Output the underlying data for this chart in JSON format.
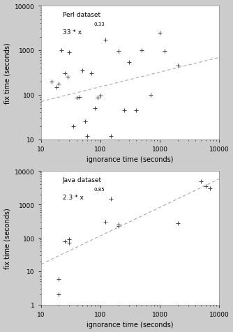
{
  "perl": {
    "label": "Perl dataset",
    "formula_base": "33 * x",
    "formula_exp": "0.33",
    "coeff": 33,
    "exp": 0.33,
    "points_x": [
      15,
      18,
      20,
      22,
      25,
      28,
      30,
      35,
      40,
      45,
      50,
      55,
      60,
      70,
      80,
      90,
      100,
      120,
      150,
      200,
      250,
      300,
      400,
      500,
      700,
      1000,
      1200,
      2000
    ],
    "points_y": [
      200,
      150,
      180,
      1000,
      300,
      250,
      900,
      20,
      85,
      90,
      350,
      25,
      12,
      300,
      50,
      85,
      95,
      1700,
      12,
      950,
      45,
      550,
      45,
      1000,
      100,
      2500,
      950,
      450
    ],
    "xlim": [
      10,
      10000
    ],
    "ylim": [
      10,
      10000
    ],
    "xlabel": "ignorance time (seconds)",
    "ylabel": "fix time (seconds)"
  },
  "java": {
    "label": "Java dataset",
    "formula_base": "2.3 * x",
    "formula_exp": "0.85",
    "coeff": 2.3,
    "exp": 0.85,
    "points_x": [
      20,
      20,
      25,
      30,
      30,
      120,
      150,
      200,
      200,
      200,
      2000,
      5000,
      6000,
      7000
    ],
    "points_y": [
      2,
      6,
      80,
      90,
      70,
      300,
      1500,
      250,
      230,
      250,
      270,
      5000,
      3500,
      3000
    ],
    "xlim": [
      10,
      10000
    ],
    "ylim": [
      1,
      10000
    ],
    "xlabel": "ignorance time (seconds)",
    "ylabel": "fix time (seconds)"
  },
  "line_color": "#aaaaaa",
  "marker": "+",
  "marker_color": "#444444",
  "marker_size": 4,
  "marker_edge_width": 0.7,
  "bg_color": "#ffffff",
  "fig_bg_color": "#cccccc",
  "font_size": 6.5,
  "axis_label_font_size": 7,
  "annotation_font_size": 6.5,
  "line_width": 0.8,
  "line_dash": [
    4,
    3
  ]
}
